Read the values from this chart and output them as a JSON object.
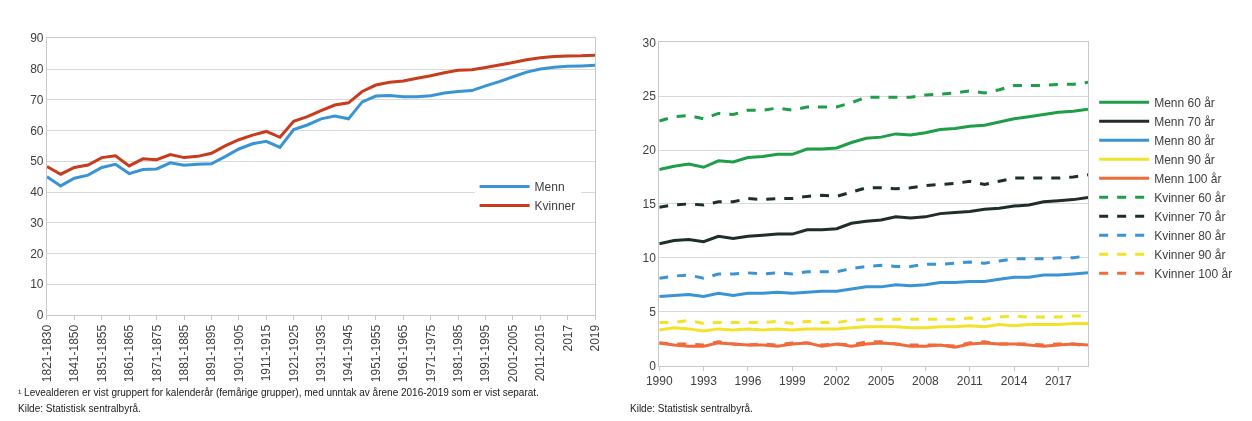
{
  "chart_data": [
    {
      "type": "line",
      "categories": [
        "1821-1830",
        null,
        "1841-1850",
        null,
        "1851-1855",
        null,
        "1861-1865",
        null,
        "1871-1875",
        null,
        "1881-1885",
        null,
        "1891-1895",
        null,
        "1901-1905",
        null,
        "1911-1915",
        null,
        "1921-1925",
        null,
        "1931-1935",
        null,
        "1941-1945",
        null,
        "1951-1955",
        null,
        "1961-1965",
        null,
        "1971-1975",
        null,
        "1981-1985",
        null,
        "1991-1995",
        null,
        "2001-2005",
        null,
        "2011-2015",
        null,
        "2017",
        null,
        "2019"
      ],
      "series": [
        {
          "name": "Menn",
          "color": "#3a94d4",
          "values": [
            45,
            42,
            44.5,
            45.5,
            48,
            49,
            46,
            47.3,
            47.5,
            49.5,
            48.7,
            49,
            49.2,
            51.5,
            54,
            55.7,
            56.5,
            54.5,
            60.3,
            61.8,
            63.8,
            64.7,
            63.8,
            69.3,
            71.2,
            71.4,
            71,
            71,
            71.3,
            72.2,
            72.7,
            73,
            74.5,
            75.9,
            77.5,
            79,
            80,
            80.6,
            80.9,
            81,
            81.2
          ]
        },
        {
          "name": "Kvinner",
          "color": "#c83c1e",
          "values": [
            48.3,
            45.8,
            48,
            48.8,
            51.2,
            51.8,
            48.5,
            50.8,
            50.5,
            52.2,
            51.2,
            51.6,
            52.6,
            55,
            57,
            58.5,
            59.7,
            57.8,
            63,
            64.5,
            66.5,
            68.3,
            69,
            72.7,
            74.8,
            75.7,
            76.1,
            77,
            77.8,
            78.8,
            79.6,
            79.8,
            80.5,
            81.3,
            82.1,
            83,
            83.7,
            84.1,
            84.2,
            84.3,
            84.5
          ]
        }
      ],
      "ylim": [
        0,
        90
      ],
      "yticks": [
        0,
        10,
        20,
        30,
        40,
        50,
        60,
        70,
        80,
        90
      ],
      "grid": "y",
      "legend": "right",
      "line_style": "solid",
      "annotations": [
        "¹ Levealderen er vist gruppert for kalenderår (femårige grupper), med unntak av årene 2016-2019 som er vist separat.",
        "Kilde: Statistisk sentralbyrå."
      ]
    },
    {
      "type": "line",
      "x": [
        1990,
        1991,
        1992,
        1993,
        1994,
        1995,
        1996,
        1997,
        1998,
        1999,
        2000,
        2001,
        2002,
        2003,
        2004,
        2005,
        2006,
        2007,
        2008,
        2009,
        2010,
        2011,
        2012,
        2013,
        2014,
        2015,
        2016,
        2017,
        2018,
        2019
      ],
      "series": [
        {
          "name": "Menn 60 år",
          "color": "#1f9e48",
          "line_style": "solid",
          "values": [
            18.2,
            18.5,
            18.7,
            18.4,
            19.0,
            18.9,
            19.3,
            19.4,
            19.6,
            19.6,
            20.1,
            20.1,
            20.2,
            20.7,
            21.1,
            21.2,
            21.5,
            21.4,
            21.6,
            21.9,
            22.0,
            22.2,
            22.3,
            22.6,
            22.9,
            23.1,
            23.3,
            23.5,
            23.6,
            23.8
          ]
        },
        {
          "name": "Menn 70 år",
          "color": "#1f2d2d",
          "line_style": "solid",
          "values": [
            11.3,
            11.6,
            11.7,
            11.5,
            12.0,
            11.8,
            12.0,
            12.1,
            12.2,
            12.2,
            12.6,
            12.6,
            12.7,
            13.2,
            13.4,
            13.5,
            13.8,
            13.7,
            13.8,
            14.1,
            14.2,
            14.3,
            14.5,
            14.6,
            14.8,
            14.9,
            15.2,
            15.3,
            15.4,
            15.6
          ]
        },
        {
          "name": "Menn 80 år",
          "color": "#3a94d4",
          "line_style": "solid",
          "values": [
            6.4,
            6.5,
            6.6,
            6.4,
            6.7,
            6.5,
            6.7,
            6.7,
            6.8,
            6.7,
            6.8,
            6.9,
            6.9,
            7.1,
            7.3,
            7.3,
            7.5,
            7.4,
            7.5,
            7.7,
            7.7,
            7.8,
            7.8,
            8.0,
            8.2,
            8.2,
            8.4,
            8.4,
            8.5,
            8.6
          ]
        },
        {
          "name": "Menn 90 år",
          "color": "#f2e32a",
          "line_style": "solid",
          "values": [
            3.3,
            3.5,
            3.4,
            3.2,
            3.4,
            3.3,
            3.4,
            3.3,
            3.4,
            3.3,
            3.4,
            3.4,
            3.4,
            3.5,
            3.6,
            3.6,
            3.6,
            3.5,
            3.5,
            3.6,
            3.6,
            3.7,
            3.6,
            3.8,
            3.7,
            3.8,
            3.8,
            3.8,
            3.9,
            3.9
          ]
        },
        {
          "name": "Menn 100 år",
          "color": "#f06a3a",
          "line_style": "solid",
          "values": [
            2.1,
            1.9,
            1.8,
            1.8,
            2.1,
            2.0,
            1.9,
            1.9,
            1.8,
            2.0,
            2.1,
            1.8,
            2.0,
            1.8,
            2.0,
            2.1,
            2.0,
            1.8,
            1.8,
            1.9,
            1.7,
            2.0,
            2.1,
            2.0,
            2.0,
            1.9,
            1.8,
            1.9,
            2.0,
            1.9
          ]
        },
        {
          "name": "Kvinner 60 år",
          "color": "#1f9e48",
          "line_style": "dashed",
          "values": [
            22.7,
            23.1,
            23.2,
            22.9,
            23.4,
            23.3,
            23.7,
            23.7,
            23.9,
            23.7,
            24.0,
            24.0,
            24.0,
            24.4,
            24.9,
            24.9,
            24.9,
            24.9,
            25.1,
            25.2,
            25.3,
            25.5,
            25.3,
            25.6,
            26.0,
            26.0,
            26.0,
            26.1,
            26.1,
            26.3
          ]
        },
        {
          "name": "Kvinner 70 år",
          "color": "#1f2d2d",
          "line_style": "dashed",
          "values": [
            14.7,
            14.9,
            15.0,
            14.9,
            15.2,
            15.2,
            15.5,
            15.4,
            15.5,
            15.5,
            15.7,
            15.8,
            15.7,
            16.1,
            16.5,
            16.5,
            16.4,
            16.5,
            16.7,
            16.8,
            16.9,
            17.1,
            16.8,
            17.1,
            17.4,
            17.4,
            17.4,
            17.4,
            17.5,
            17.7
          ]
        },
        {
          "name": "Kvinner 80 år",
          "color": "#3a94d4",
          "line_style": "dashed",
          "values": [
            8.1,
            8.3,
            8.4,
            8.1,
            8.5,
            8.5,
            8.6,
            8.5,
            8.6,
            8.5,
            8.7,
            8.7,
            8.7,
            9.0,
            9.2,
            9.3,
            9.2,
            9.2,
            9.4,
            9.4,
            9.5,
            9.6,
            9.5,
            9.7,
            9.9,
            9.9,
            9.9,
            10.0,
            10.0,
            10.2
          ]
        },
        {
          "name": "Kvinner 90 år",
          "color": "#f2e32a",
          "line_style": "dashed",
          "values": [
            4.0,
            4.0,
            4.2,
            3.9,
            4.0,
            4.0,
            4.0,
            4.0,
            4.1,
            3.9,
            4.1,
            4.0,
            4.0,
            4.2,
            4.3,
            4.3,
            4.3,
            4.3,
            4.3,
            4.3,
            4.3,
            4.4,
            4.3,
            4.5,
            4.6,
            4.5,
            4.5,
            4.5,
            4.6,
            4.6
          ]
        },
        {
          "name": "Kvinner 100 år",
          "color": "#f06a3a",
          "line_style": "dashed",
          "values": [
            2.1,
            2.0,
            2.0,
            1.9,
            2.2,
            2.0,
            1.9,
            2.0,
            1.9,
            2.1,
            2.1,
            1.9,
            2.0,
            1.9,
            2.2,
            2.2,
            2.0,
            1.9,
            1.9,
            1.9,
            1.8,
            2.1,
            2.2,
            2.0,
            2.0,
            2.0,
            1.9,
            2.0,
            2.0,
            1.8
          ]
        }
      ],
      "xlim": [
        1990,
        2019
      ],
      "xticks": [
        1990,
        1993,
        1996,
        1999,
        2002,
        2005,
        2008,
        2011,
        2014,
        2017
      ],
      "ylim": [
        0,
        30
      ],
      "yticks": [
        0,
        5,
        10,
        15,
        20,
        25,
        30
      ],
      "grid": "y",
      "legend": "right",
      "annotations": [
        "Kilde: Statistisk sentralbyrå."
      ]
    }
  ]
}
